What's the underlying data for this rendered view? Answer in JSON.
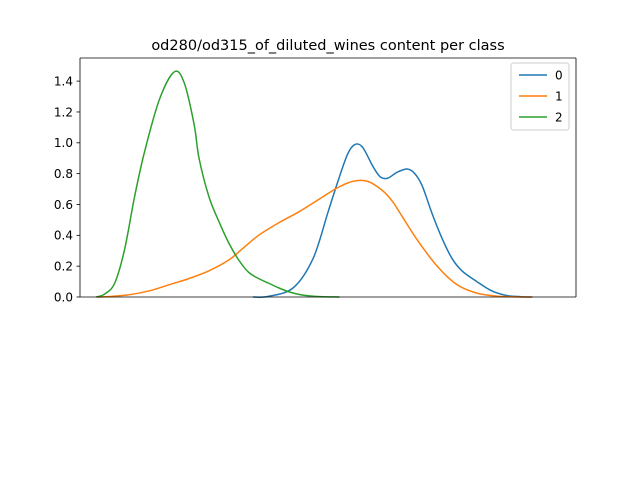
{
  "chart_data": {
    "type": "line",
    "title": "od280/od315_of_diluted_wines content per class",
    "xlabel": "",
    "ylabel": "",
    "x_range": [
      0,
      100
    ],
    "ylim": [
      0,
      1.55
    ],
    "y_ticks": [
      0.0,
      0.2,
      0.4,
      0.6,
      0.8,
      1.0,
      1.2,
      1.4
    ],
    "y_tick_labels": [
      "0.0",
      "0.2",
      "0.4",
      "0.6",
      "0.8",
      "1.0",
      "1.2",
      "1.4"
    ],
    "x_ticks_visible": false,
    "legend": "top-right",
    "series": [
      {
        "name": "0",
        "color": "#1f77b4",
        "x": [
          34.9,
          38,
          43,
          47,
          50,
          52,
          54,
          55.5,
          57,
          59,
          60.5,
          62,
          64,
          66,
          67.5,
          69,
          71,
          73,
          75,
          77,
          80,
          83,
          86,
          89,
          91.2
        ],
        "y": [
          0.0,
          0.004,
          0.06,
          0.25,
          0.55,
          0.75,
          0.93,
          0.99,
          0.97,
          0.85,
          0.78,
          0.77,
          0.81,
          0.83,
          0.8,
          0.72,
          0.54,
          0.38,
          0.25,
          0.17,
          0.1,
          0.04,
          0.01,
          0.002,
          0.0
        ]
      },
      {
        "name": "1",
        "color": "#ff7f0e",
        "x": [
          3.3,
          6,
          10,
          14,
          18,
          22,
          26,
          30,
          33,
          36,
          40,
          44,
          48,
          52,
          55,
          58,
          61,
          63,
          65,
          68,
          72,
          76,
          80,
          84,
          88,
          91.1
        ],
        "y": [
          0.0,
          0.003,
          0.015,
          0.04,
          0.08,
          0.12,
          0.17,
          0.24,
          0.32,
          0.4,
          0.48,
          0.55,
          0.63,
          0.71,
          0.75,
          0.75,
          0.69,
          0.62,
          0.52,
          0.37,
          0.2,
          0.08,
          0.025,
          0.006,
          0.001,
          0.0
        ]
      },
      {
        "name": "2",
        "color": "#2ca02c",
        "x": [
          3.3,
          5,
          7,
          9,
          11,
          13,
          16,
          19,
          21,
          23,
          24,
          26,
          28,
          30,
          32,
          34,
          36,
          38,
          40,
          42,
          44,
          46,
          48,
          50,
          52.3
        ],
        "y": [
          0.0,
          0.02,
          0.09,
          0.31,
          0.65,
          0.94,
          1.28,
          1.46,
          1.39,
          1.12,
          0.9,
          0.65,
          0.49,
          0.35,
          0.24,
          0.16,
          0.12,
          0.09,
          0.06,
          0.035,
          0.018,
          0.008,
          0.003,
          0.001,
          0.0
        ]
      }
    ]
  }
}
